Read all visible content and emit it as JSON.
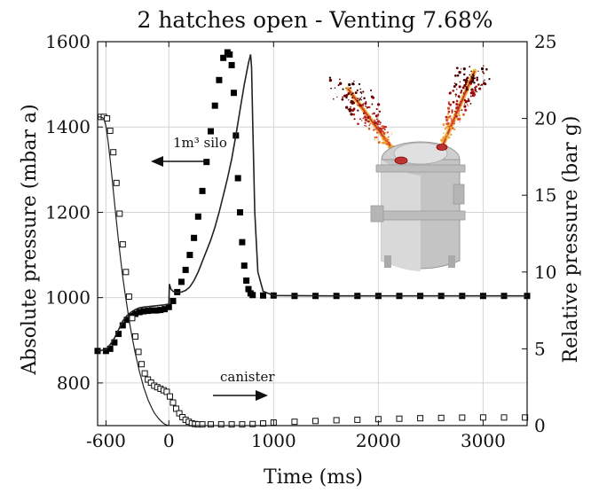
{
  "chart_data": {
    "type": "line",
    "title": "2 hatches open - Venting 7.68%",
    "xlabel": "Time (ms)",
    "ylabel_left": "Absolute pressure (mbar a)",
    "ylabel_right": "Relative pressure (bar g)",
    "xlim": [
      -680,
      3420
    ],
    "ylim_left": [
      700,
      1600
    ],
    "ylim_right": [
      0,
      25
    ],
    "x_ticks": [
      -600,
      0,
      1000,
      2000,
      3000
    ],
    "y_ticks_left": [
      800,
      1000,
      1200,
      1400,
      1600
    ],
    "y_ticks_right": [
      0,
      5,
      10,
      15,
      20,
      25
    ],
    "grid": true,
    "legend": "none",
    "annotations": [
      {
        "text": "1m³ silo",
        "arrow": "left"
      },
      {
        "text": "canister",
        "arrow": "right"
      }
    ],
    "series": [
      {
        "marker": "filled-square",
        "axis": "left",
        "x": [
          -680,
          -600,
          -560,
          -520,
          -480,
          -440,
          -400,
          -360,
          -320,
          -280,
          -240,
          -200,
          -160,
          -120,
          -80,
          -40,
          0,
          40,
          80,
          120,
          160,
          200,
          240,
          280,
          320,
          360,
          400,
          440,
          480,
          520,
          560,
          580,
          600,
          620,
          640,
          660,
          680,
          700,
          720,
          740,
          760,
          780,
          800,
          900,
          1000,
          1200,
          1400,
          1600,
          1800,
          2000,
          2200,
          2400,
          2600,
          2800,
          3000,
          3200,
          3420
        ],
        "y": [
          875,
          875,
          880,
          895,
          915,
          935,
          948,
          957,
          962,
          966,
          968,
          969,
          970,
          970,
          971,
          973,
          978,
          992,
          1013,
          1037,
          1065,
          1100,
          1140,
          1190,
          1250,
          1318,
          1390,
          1450,
          1510,
          1562,
          1575,
          1570,
          1545,
          1480,
          1380,
          1280,
          1200,
          1130,
          1075,
          1040,
          1020,
          1010,
          1006,
          1005,
          1005,
          1004,
          1004,
          1004,
          1004,
          1004,
          1004,
          1004,
          1004,
          1004,
          1004,
          1004,
          1004
        ]
      },
      {
        "marker": "solid-line",
        "axis": "left",
        "x": [
          -680,
          -600,
          -560,
          -520,
          -480,
          -440,
          -400,
          -360,
          -320,
          -280,
          -240,
          -200,
          -160,
          -120,
          -80,
          -40,
          0,
          5,
          20,
          40,
          80,
          120,
          160,
          200,
          240,
          280,
          320,
          360,
          400,
          440,
          480,
          520,
          560,
          600,
          640,
          680,
          720,
          760,
          780,
          790,
          800,
          820,
          850,
          900,
          1000,
          1500,
          2000,
          2500,
          3000,
          3420
        ],
        "y": [
          875,
          878,
          890,
          905,
          925,
          945,
          958,
          966,
          972,
          976,
          978,
          979,
          980,
          981,
          982,
          983,
          985,
          1032,
          1020,
          1015,
          1012,
          1013,
          1017,
          1025,
          1040,
          1060,
          1085,
          1110,
          1135,
          1165,
          1200,
          1240,
          1280,
          1325,
          1380,
          1440,
          1500,
          1550,
          1570,
          1540,
          1420,
          1200,
          1060,
          1015,
          1005,
          1004,
          1004,
          1004,
          1004,
          1004
        ]
      },
      {
        "marker": "open-square",
        "axis": "right",
        "x": [
          -650,
          -620,
          -590,
          -560,
          -530,
          -500,
          -470,
          -440,
          -410,
          -380,
          -350,
          -320,
          -290,
          -260,
          -230,
          -200,
          -170,
          -140,
          -110,
          -80,
          -50,
          -20,
          10,
          40,
          70,
          100,
          130,
          160,
          190,
          220,
          250,
          280,
          320,
          400,
          500,
          600,
          700,
          800,
          900,
          1000,
          1200,
          1400,
          1600,
          1800,
          2000,
          2200,
          2400,
          2600,
          2800,
          3000,
          3200,
          3400
        ],
        "y": [
          20.1,
          20.1,
          20.0,
          19.2,
          17.8,
          15.8,
          13.8,
          11.8,
          10.0,
          8.4,
          7.0,
          5.8,
          4.8,
          4.0,
          3.4,
          3.0,
          2.8,
          2.6,
          2.5,
          2.4,
          2.3,
          2.2,
          1.9,
          1.5,
          1.1,
          0.8,
          0.55,
          0.38,
          0.25,
          0.15,
          0.1,
          0.08,
          0.08,
          0.08,
          0.08,
          0.08,
          0.08,
          0.1,
          0.14,
          0.2,
          0.25,
          0.3,
          0.35,
          0.38,
          0.42,
          0.45,
          0.48,
          0.5,
          0.52,
          0.53,
          0.53,
          0.53
        ]
      },
      {
        "marker": "thin-line",
        "axis": "right",
        "x": [
          -680,
          -650,
          -620,
          -600,
          -580,
          -560,
          -540,
          -520,
          -500,
          -480,
          -460,
          -440,
          -420,
          -400,
          -380,
          -360,
          -340,
          -320,
          -300,
          -280,
          -260,
          -240,
          -220,
          -200,
          -180,
          -160,
          -140,
          -120,
          -100,
          -80,
          -60,
          -40,
          -20,
          0
        ],
        "y": [
          20.1,
          20.1,
          20.0,
          19.5,
          18.5,
          17.3,
          16.0,
          14.6,
          13.3,
          12.0,
          10.8,
          9.7,
          8.7,
          7.8,
          6.9,
          6.1,
          5.4,
          4.7,
          4.1,
          3.5,
          3.0,
          2.5,
          2.1,
          1.7,
          1.4,
          1.1,
          0.85,
          0.65,
          0.48,
          0.33,
          0.2,
          0.1,
          0.04,
          0.0
        ]
      }
    ]
  }
}
